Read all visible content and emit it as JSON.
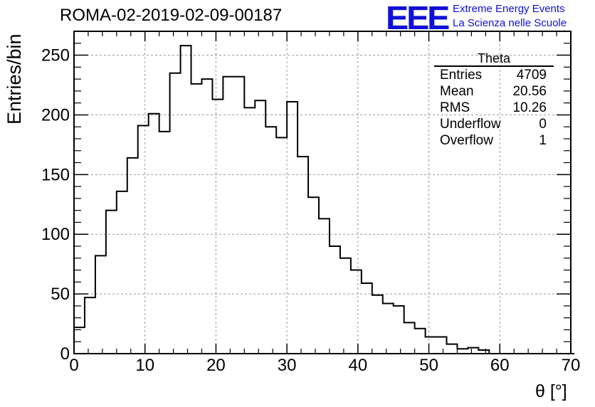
{
  "title": "ROMA-02-2019-02-09-00187",
  "logo": {
    "mark": "EEE",
    "line1": "Extreme Energy Events",
    "line2": "La Scienza nelle Scuole",
    "color": "#1010d8"
  },
  "stats": {
    "title": "Theta",
    "rows": [
      {
        "label": "Entries",
        "value": "4709"
      },
      {
        "label": "Mean",
        "value": "20.56"
      },
      {
        "label": "RMS",
        "value": "10.26"
      },
      {
        "label": "Underflow",
        "value": "0"
      },
      {
        "label": "Overflow",
        "value": "1"
      }
    ]
  },
  "chart_data": {
    "type": "bar",
    "style": "step-histogram",
    "xlabel": "θ [°]",
    "ylabel": "Entries/bin",
    "xlim": [
      0,
      70
    ],
    "ylim": [
      0,
      270
    ],
    "grid": true,
    "legend": "top-right",
    "bin_width": 1.5,
    "bin_start": 0,
    "values": [
      22,
      47,
      82,
      120,
      136,
      164,
      191,
      201,
      186,
      235,
      258,
      226,
      230,
      213,
      232,
      232,
      206,
      212,
      190,
      181,
      211,
      165,
      131,
      113,
      90,
      80,
      70,
      59,
      49,
      42,
      40,
      26,
      21,
      14,
      14,
      8,
      4,
      5,
      3,
      0,
      0,
      0,
      0,
      0,
      0,
      0,
      0
    ],
    "xticks": [
      "0",
      "10",
      "20",
      "30",
      "40",
      "50",
      "60",
      "70"
    ],
    "yticks": [
      "0",
      "50",
      "100",
      "150",
      "200",
      "250"
    ]
  }
}
